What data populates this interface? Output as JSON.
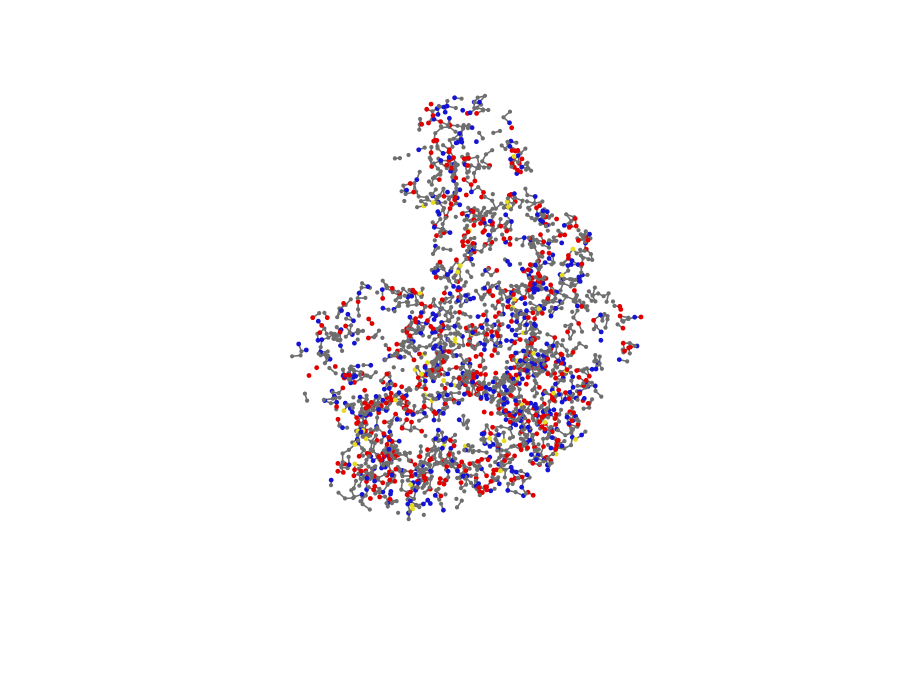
{
  "scene": {
    "subject": "protein-molecule-ball-and-stick",
    "background_color": "#ffffff",
    "element_colors": {
      "carbon": "#6e6e6e",
      "oxygen": "#e00000",
      "nitrogen": "#1414d2",
      "sulfur": "#e6dc1e"
    },
    "element_mix": {
      "carbon": 0.58,
      "oxygen": 0.22,
      "nitrogen": 0.18,
      "sulfur": 0.02
    },
    "rendering_style": "ball-and-stick"
  }
}
